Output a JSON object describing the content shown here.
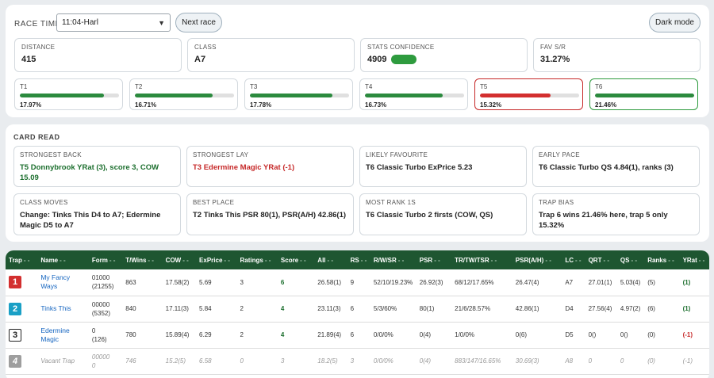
{
  "header": {
    "race_time_label": "RACE TIME",
    "race_time_value": "11:04-Harl",
    "next_race_label": "Next race",
    "dark_mode_label": "Dark mode"
  },
  "stats": [
    {
      "label": "DISTANCE",
      "value": "415"
    },
    {
      "label": "CLASS",
      "value": "A7"
    },
    {
      "label": "STATS CONFIDENCE",
      "value": "4909"
    },
    {
      "label": "FAV S/R",
      "value": "31.27%"
    }
  ],
  "traps": [
    {
      "label": "T1",
      "pct": "17.97%",
      "fill": 0.85,
      "status": "normal"
    },
    {
      "label": "T2",
      "pct": "16.71%",
      "fill": 0.78,
      "status": "normal"
    },
    {
      "label": "T3",
      "pct": "17.78%",
      "fill": 0.83,
      "status": "normal"
    },
    {
      "label": "T4",
      "pct": "16.73%",
      "fill": 0.78,
      "status": "normal"
    },
    {
      "label": "T5",
      "pct": "15.32%",
      "fill": 0.71,
      "status": "low"
    },
    {
      "label": "T6",
      "pct": "21.46%",
      "fill": 1.0,
      "status": "high"
    }
  ],
  "card_read": {
    "title": "CARD READ",
    "items": [
      {
        "label": "STRONGEST BACK",
        "text": "T5 Donnybrook YRat (3), score 3, COW 15.09",
        "tone": "green"
      },
      {
        "label": "STRONGEST LAY",
        "text": "T3 Edermine Magic YRat (-1)",
        "tone": "red"
      },
      {
        "label": "LIKELY FAVOURITE",
        "text": "T6 Classic Turbo ExPrice 5.23",
        "tone": ""
      },
      {
        "label": "EARLY PACE",
        "text": "T6 Classic Turbo QS 4.84(1), ranks (3)",
        "tone": ""
      },
      {
        "label": "CLASS MOVES",
        "text": "Change: Tinks This D4 to A7; Edermine Magic D5 to A7",
        "tone": ""
      },
      {
        "label": "BEST PLACE",
        "text": "T2 Tinks This PSR 80(1), PSR(A/H) 42.86(1)",
        "tone": ""
      },
      {
        "label": "MOST RANK 1S",
        "text": "T6 Classic Turbo 2 firsts (COW, QS)",
        "tone": ""
      },
      {
        "label": "TRAP BIAS",
        "text": "Trap 6 wins 21.46% here, trap 5 only 15.32%",
        "tone": ""
      }
    ]
  },
  "table": {
    "columns": [
      "Trap",
      "Name",
      "Form",
      "T/Wins",
      "COW",
      "ExPrice",
      "Ratings",
      "Score",
      "All",
      "RS",
      "R/W/SR",
      "PSR",
      "TR/TW/TSR",
      "PSR(A/H)",
      "LC",
      "QRT",
      "QS",
      "Ranks",
      "YRat"
    ],
    "sort_glyph": "- -",
    "rows": [
      {
        "trap": "1",
        "name": "My Fancy Ways",
        "form": "01000",
        "form2": "(21255)",
        "twins": "863",
        "cow": "17.58(2)",
        "exprice": "5.69",
        "ratings": "3",
        "score": "6",
        "all": "26.58(1)",
        "rs": "9",
        "rwsr": "52/10/19.23%",
        "psr": "26.92(3)",
        "trtwtsr": "68/12/17.65%",
        "psrah": "26.47(4)",
        "lc": "A7",
        "qrt": "27.01(1)",
        "qs": "5.03(4)",
        "ranks": "(5)",
        "yrat": "(1)",
        "yrat_tone": "g",
        "vacant": false
      },
      {
        "trap": "2",
        "name": "Tinks This",
        "form": "00000",
        "form2": "(5352)",
        "twins": "840",
        "cow": "17.11(3)",
        "exprice": "5.84",
        "ratings": "2",
        "score": "4",
        "all": "23.11(3)",
        "rs": "6",
        "rwsr": "5/3/60%",
        "psr": "80(1)",
        "trtwtsr": "21/6/28.57%",
        "psrah": "42.86(1)",
        "lc": "D4",
        "qrt": "27.56(4)",
        "qs": "4.97(2)",
        "ranks": "(6)",
        "yrat": "(1)",
        "yrat_tone": "g",
        "vacant": false
      },
      {
        "trap": "3",
        "name": "Edermine Magic",
        "form": "0",
        "form2": "(126)",
        "twins": "780",
        "cow": "15.89(4)",
        "exprice": "6.29",
        "ratings": "2",
        "score": "4",
        "all": "21.89(4)",
        "rs": "6",
        "rwsr": "0/0/0%",
        "psr": "0(4)",
        "trtwtsr": "1/0/0%",
        "psrah": "0(6)",
        "lc": "D5",
        "qrt": "0()",
        "qs": "0()",
        "ranks": "(0)",
        "yrat": "(-1)",
        "yrat_tone": "r",
        "vacant": false
      },
      {
        "trap": "4",
        "name": "Vacant Trap",
        "form": "00000",
        "form2": "0",
        "twins": "746",
        "cow": "15.2(5)",
        "exprice": "6.58",
        "ratings": "0",
        "score": "3",
        "all": "18.2(5)",
        "rs": "3",
        "rwsr": "0/0/0%",
        "psr": "0(4)",
        "trtwtsr": "883/147/16.65%",
        "psrah": "30.69(3)",
        "lc": "A8",
        "qrt": "0",
        "qs": "0",
        "ranks": "(0)",
        "yrat": "(-1)",
        "yrat_tone": "r",
        "vacant": true
      }
    ]
  },
  "colors": {
    "header_green": "#1e5631",
    "bar_green": "#2b8a3e",
    "bar_red": "#d32f2f",
    "trap1": "#d32f2f",
    "trap2": "#1aa0c6",
    "trap3": "#ffffff",
    "trap4": "#9e9e9e"
  }
}
